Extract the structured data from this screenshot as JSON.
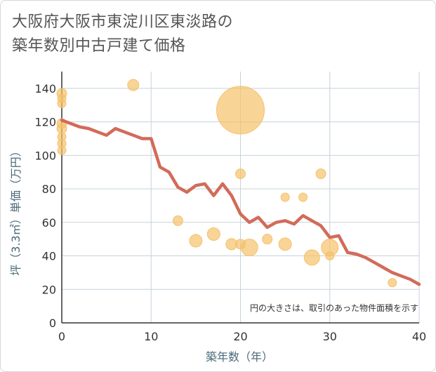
{
  "title_line1": "大阪府大阪市東淀川区東淡路の",
  "title_line2": "築年数別中古戸建て価格",
  "note": "円の大きさは、取引のあった物件面積を示す",
  "colors": {
    "line": "#d26b5a",
    "bubble": "#f5c26b",
    "grid": "#c5d3dc",
    "axis": "#333333"
  },
  "chart_data": {
    "type": "scatter",
    "xlabel": "築年数（年）",
    "ylabel": "坪（3.3㎡）単価（万円）",
    "xlim": [
      0,
      40
    ],
    "ylim": [
      0,
      150
    ],
    "x_ticks": [
      0,
      10,
      20,
      30,
      40
    ],
    "y_ticks": [
      0,
      20,
      40,
      60,
      80,
      100,
      120,
      140
    ],
    "grid": true,
    "line_series": {
      "x": [
        0,
        1,
        2,
        3,
        4,
        5,
        6,
        7,
        8,
        9,
        10,
        11,
        12,
        13,
        14,
        15,
        16,
        17,
        18,
        19,
        20,
        21,
        22,
        23,
        24,
        25,
        26,
        27,
        28,
        29,
        30,
        31,
        32,
        33,
        34,
        35,
        36,
        37,
        38,
        39,
        40
      ],
      "y": [
        121,
        119,
        117,
        116,
        114,
        112,
        116,
        114,
        112,
        110,
        110,
        93,
        90,
        81,
        78,
        82,
        83,
        76,
        83,
        76,
        65,
        60,
        63,
        57,
        60,
        61,
        59,
        64,
        61,
        58,
        51,
        52,
        42,
        41,
        39,
        36,
        33,
        30,
        28,
        26,
        23
      ]
    },
    "bubbles": [
      {
        "x": 0,
        "y": 137,
        "r": 7
      },
      {
        "x": 0,
        "y": 134,
        "r": 6
      },
      {
        "x": 0,
        "y": 131,
        "r": 6
      },
      {
        "x": 0,
        "y": 119,
        "r": 7
      },
      {
        "x": 0,
        "y": 116,
        "r": 7
      },
      {
        "x": 0,
        "y": 111,
        "r": 6
      },
      {
        "x": 0,
        "y": 107,
        "r": 6
      },
      {
        "x": 0,
        "y": 103,
        "r": 6
      },
      {
        "x": 8,
        "y": 142,
        "r": 8
      },
      {
        "x": 20,
        "y": 127,
        "r": 34
      },
      {
        "x": 20,
        "y": 89,
        "r": 7
      },
      {
        "x": 29,
        "y": 89,
        "r": 7
      },
      {
        "x": 25,
        "y": 75,
        "r": 6
      },
      {
        "x": 27,
        "y": 75,
        "r": 6
      },
      {
        "x": 13,
        "y": 61,
        "r": 7
      },
      {
        "x": 17,
        "y": 53,
        "r": 9
      },
      {
        "x": 15,
        "y": 49,
        "r": 9
      },
      {
        "x": 19,
        "y": 47,
        "r": 8
      },
      {
        "x": 20,
        "y": 47,
        "r": 7
      },
      {
        "x": 21,
        "y": 45,
        "r": 12
      },
      {
        "x": 23,
        "y": 50,
        "r": 7
      },
      {
        "x": 25,
        "y": 47,
        "r": 9
      },
      {
        "x": 28,
        "y": 39,
        "r": 11
      },
      {
        "x": 30,
        "y": 45,
        "r": 12
      },
      {
        "x": 30,
        "y": 40,
        "r": 6
      },
      {
        "x": 37,
        "y": 24,
        "r": 6
      }
    ]
  }
}
